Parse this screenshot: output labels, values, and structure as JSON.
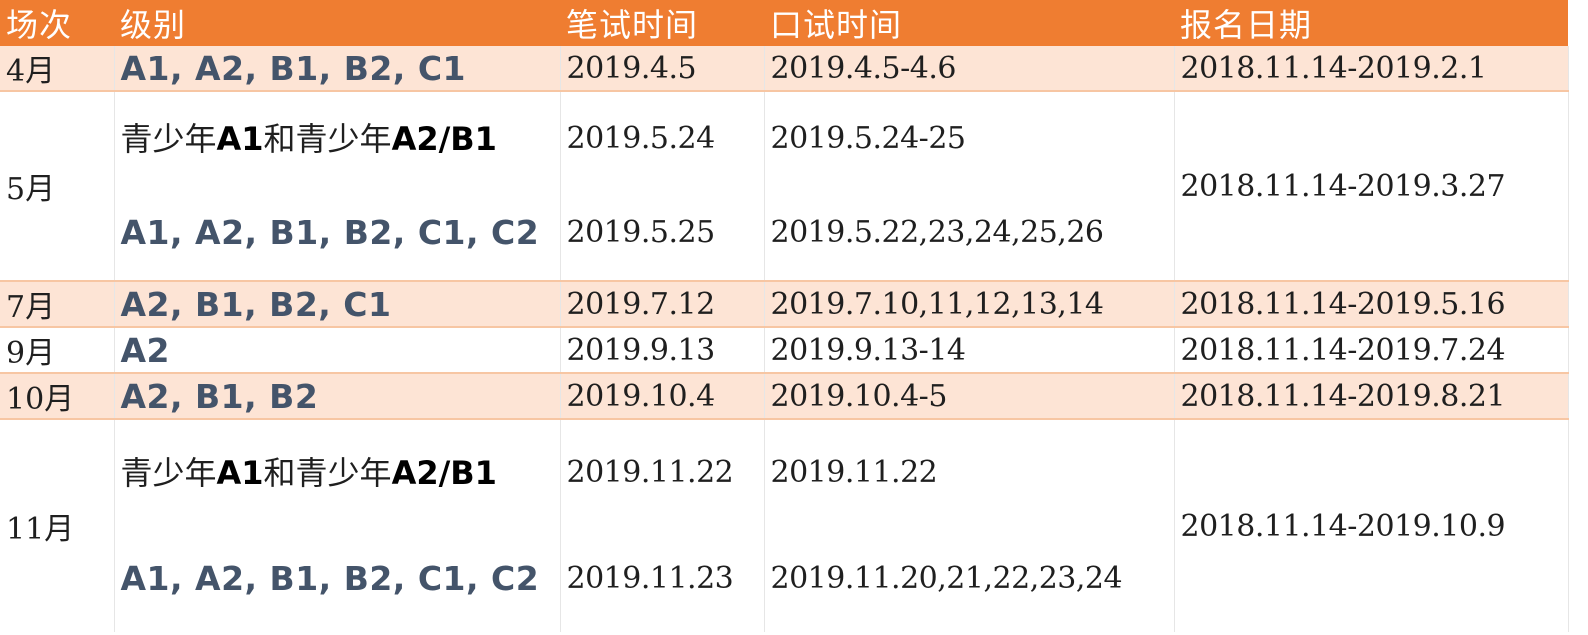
{
  "headers": [
    "场次",
    "级别",
    "笔试时间",
    "口试时间",
    "报名日期"
  ],
  "colors": {
    "header_bg": "#ef7d31",
    "band_bg": "#fde4d5",
    "level_text": "#44546a"
  },
  "rows": [
    {
      "month": "4月",
      "levels": "A1, A2, B1, B2, C1",
      "written": "2019.4.5",
      "oral": "2019.4.5-4.6",
      "registration": "2018.11.14-2019.2.1"
    },
    {
      "month": "5月",
      "teen_prefix1": "青少年",
      "teen_bold1": "A1",
      "teen_mid": "和青少年",
      "teen_bold2": "A2/B1",
      "written_teen": "2019.5.24",
      "oral_teen": "2019.5.24-25",
      "levels": "A1, A2, B1, B2, C1, C2",
      "written": "2019.5.25",
      "oral": "2019.5.22,23,24,25,26",
      "registration": "2018.11.14-2019.3.27"
    },
    {
      "month": "7月",
      "levels": "A2, B1, B2, C1",
      "written": "2019.7.12",
      "oral": "2019.7.10,11,12,13,14",
      "registration": "2018.11.14-2019.5.16"
    },
    {
      "month": "9月",
      "levels": "A2",
      "written": "2019.9.13",
      "oral": "2019.9.13-14",
      "registration": "2018.11.14-2019.7.24"
    },
    {
      "month": "10月",
      "levels": "A2, B1, B2",
      "written": "2019.10.4",
      "oral": "2019.10.4-5",
      "registration": "2018.11.14-2019.8.21"
    },
    {
      "month": "11月",
      "teen_prefix1": "青少年",
      "teen_bold1": "A1",
      "teen_mid": "和青少年",
      "teen_bold2": "A2/B1",
      "written_teen": "2019.11.22",
      "oral_teen": "2019.11.22",
      "levels": "A1, A2, B1, B2, C1, C2",
      "written": "2019.11.23",
      "oral": "2019.11.20,21,22,23,24",
      "registration": "2018.11.14-2019.10.9"
    }
  ]
}
